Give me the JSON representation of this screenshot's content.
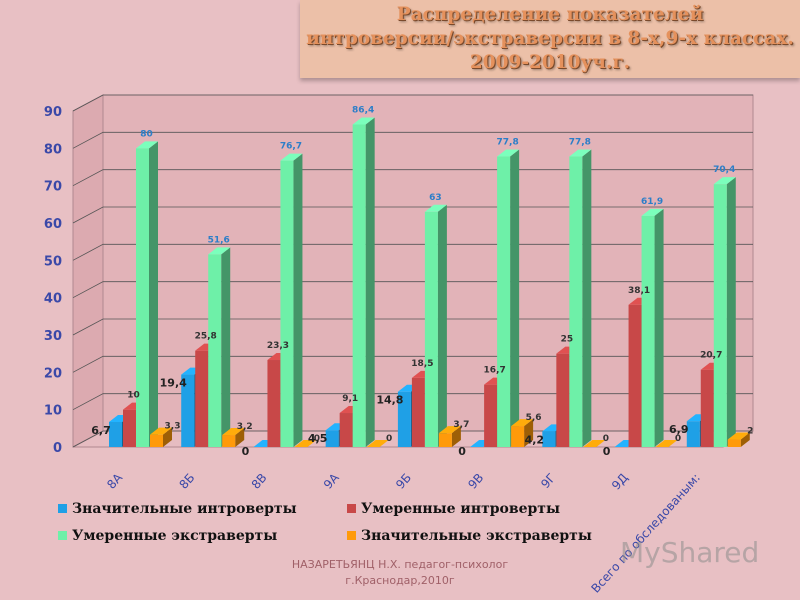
{
  "title": {
    "lines": [
      "Распределение показателей",
      "интроверсии/экстраверсии в 8-х,9-х классах.",
      "2009-2010уч.г."
    ]
  },
  "footer": {
    "lines": [
      "НАЗАРЕТЬЯНЦ Н.Х. педагог-психолог",
      "г.Краснодар,2010г"
    ]
  },
  "watermark": "MyShared",
  "chart_data": {
    "type": "bar",
    "categories": [
      "8А",
      "8Б",
      "8В",
      "9А",
      "9Б",
      "9В",
      "9Г",
      "9Д",
      "Всего по обследованым:"
    ],
    "ylim": [
      0,
      90
    ],
    "yticks": [
      0,
      10,
      20,
      30,
      40,
      50,
      60,
      70,
      80,
      90
    ],
    "legend_position": "bottom",
    "series": [
      {
        "name": "Значительные интроверты",
        "color": "#1fa0e6",
        "values": [
          6.7,
          19.4,
          0,
          4.5,
          14.8,
          0,
          4.2,
          0,
          6.9
        ],
        "labels": [
          "6,7",
          "19,4",
          "0",
          "4,5",
          "14,8",
          "0",
          "4,2",
          "0",
          "6,9"
        ]
      },
      {
        "name": "Умеренные интроверты",
        "color": "#c84848",
        "values": [
          10,
          25.8,
          23.3,
          9.1,
          18.5,
          16.7,
          25,
          38.1,
          20.7
        ],
        "labels": [
          "10",
          "25,8",
          "23,3",
          "9,1",
          "18,5",
          "16,7",
          "25",
          "38,1",
          "20,7"
        ]
      },
      {
        "name": "Умеренные экстраверты",
        "color": "#6ef0a8",
        "values": [
          80,
          51.6,
          76.7,
          86.4,
          63,
          77.8,
          77.8,
          61.9,
          70.4
        ],
        "labels": [
          "80",
          "51,6",
          "76,7",
          "86,4",
          "63",
          "77,8",
          "77,8",
          "61,9",
          "70,4"
        ]
      },
      {
        "name": "Значительные экстраверты",
        "color": "#ff9a0a",
        "values": [
          3.3,
          3.2,
          0,
          0,
          3.7,
          5.6,
          0,
          0,
          2
        ],
        "labels": [
          "3,3",
          "3,2",
          "0",
          "0",
          "3,7",
          "5,6",
          "0",
          "0",
          "2"
        ]
      }
    ]
  }
}
